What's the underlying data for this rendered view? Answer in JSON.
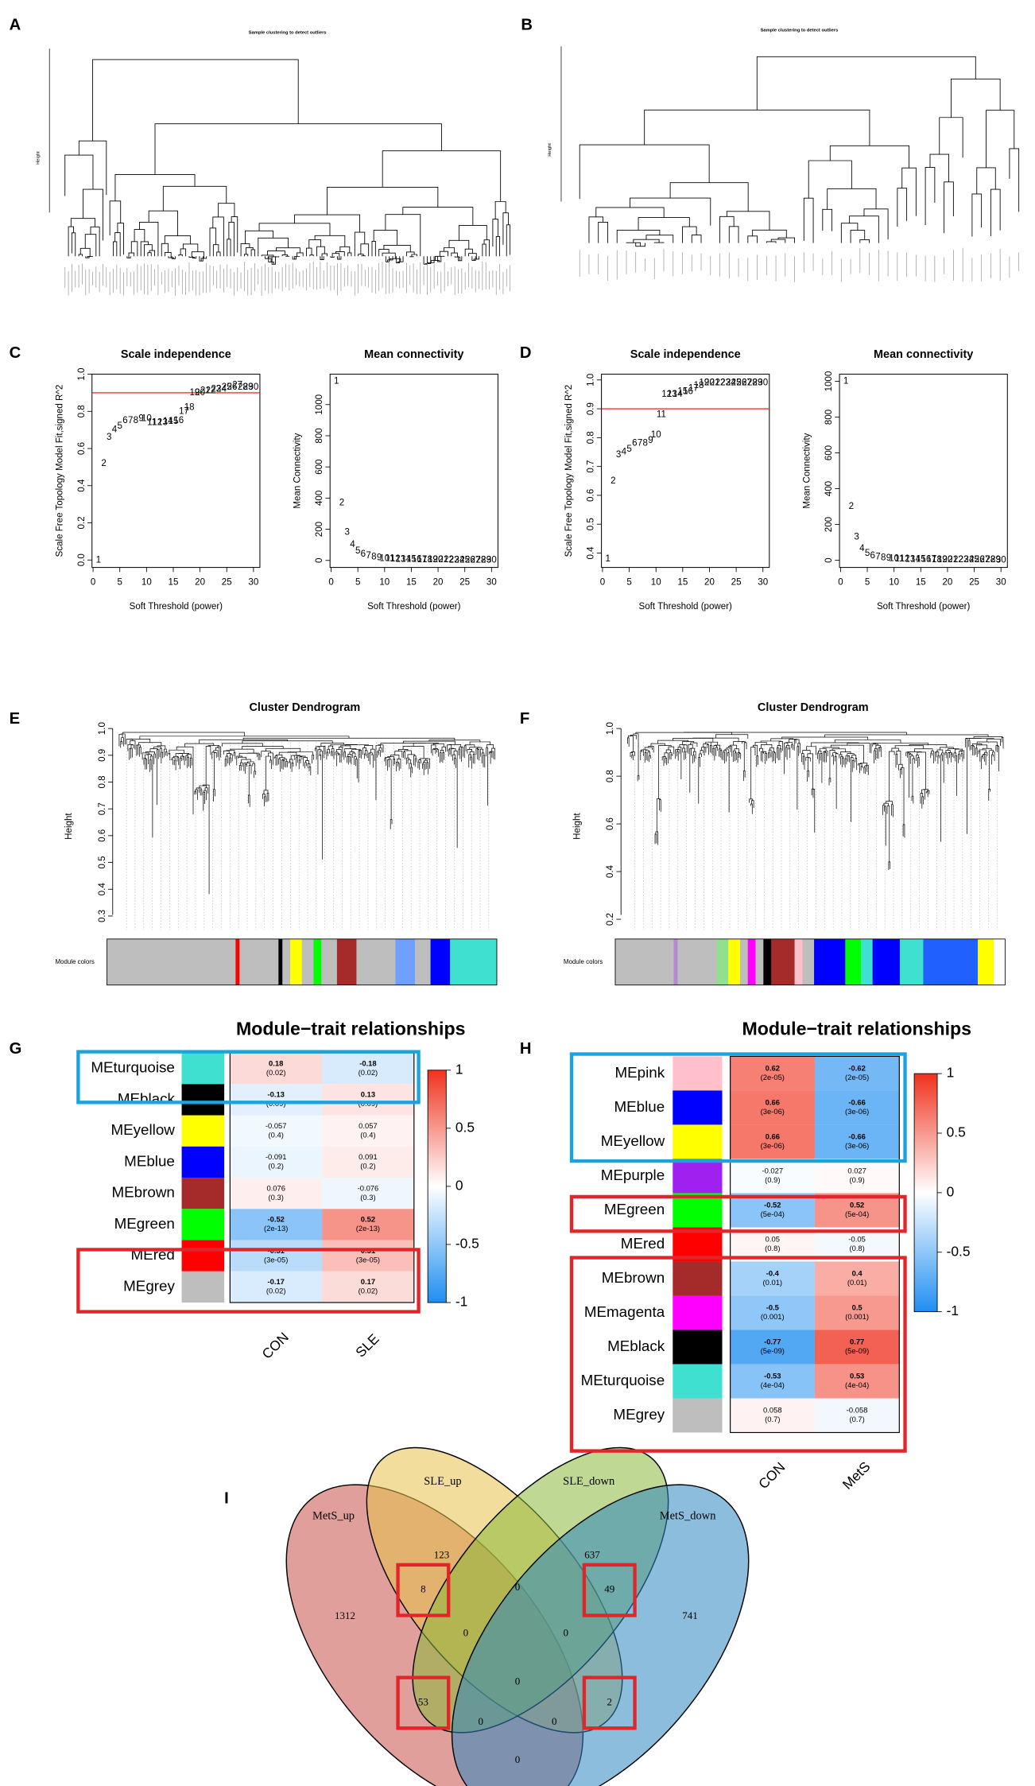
{
  "chart_data": [
    {
      "type": "dendrogram",
      "panel": "A",
      "title": "Sample clustering to detect outliers",
      "ylabel": "Height"
    },
    {
      "type": "dendrogram",
      "panel": "B",
      "title": "Sample clustering to detect outliers",
      "ylabel": "Height"
    },
    {
      "type": "scatter",
      "panel": "C",
      "title": "Scale independence",
      "xlabel": "Soft Threshold (power)",
      "ylabel": "Scale Free Topology Model Fit,signed R^2",
      "color": "#ff0000",
      "x": [
        1,
        2,
        3,
        4,
        5,
        6,
        7,
        8,
        9,
        10,
        11,
        12,
        13,
        14,
        15,
        16,
        17,
        18,
        19,
        20,
        21,
        22,
        23,
        24,
        25,
        26,
        27,
        28,
        29,
        30
      ],
      "values": [
        0.0,
        0.52,
        0.66,
        0.7,
        0.72,
        0.75,
        0.75,
        0.75,
        0.76,
        0.76,
        0.74,
        0.74,
        0.74,
        0.745,
        0.745,
        0.75,
        0.8,
        0.82,
        0.9,
        0.9,
        0.91,
        0.91,
        0.92,
        0.92,
        0.93,
        0.93,
        0.94,
        0.93,
        0.93,
        0.93
      ],
      "threshold": 0.9,
      "xlim": [
        -0.2,
        31.2
      ],
      "ylim": [
        -0.04,
        1.0
      ],
      "xticks": [
        0,
        5,
        10,
        15,
        20,
        25,
        30
      ],
      "yticks": [
        {
          "value": 0,
          "label": "0.0"
        },
        0.2,
        0.4,
        0.6,
        0.8,
        {
          "value": 1,
          "label": "1.0"
        }
      ]
    },
    {
      "type": "scatter",
      "title": "Mean connectivity",
      "xlabel": "Soft Threshold (power)",
      "ylabel": "Mean Connectivity",
      "color": "#ff0000",
      "x": [
        1,
        2,
        3,
        4,
        5,
        6,
        7,
        8,
        9,
        10,
        11,
        12,
        13,
        14,
        15,
        16,
        17,
        18,
        19,
        20,
        21,
        22,
        23,
        24,
        25,
        26,
        27,
        28,
        29,
        30
      ],
      "values": [
        1150,
        370,
        180,
        100,
        60,
        40,
        30,
        22,
        17,
        13,
        11,
        9,
        8,
        7,
        6,
        5.5,
        5,
        4.5,
        4,
        3.6,
        3.3,
        3,
        2.8,
        2.6,
        2.4,
        2.2,
        2,
        1.9,
        1.8,
        1.7
      ],
      "xlim": [
        -0.2,
        31.2
      ],
      "ylim": [
        -45,
        1195
      ],
      "xticks": [
        0,
        5,
        10,
        15,
        20,
        25,
        30
      ],
      "yticks": [
        0,
        200,
        400,
        600,
        800,
        1000
      ]
    },
    {
      "type": "scatter",
      "panel": "D",
      "title": "Scale independence",
      "xlabel": "Soft Threshold (power)",
      "ylabel": "Scale Free Topology Model Fit,signed R^2",
      "color": "#ff0000",
      "x": [
        1,
        2,
        3,
        4,
        5,
        6,
        7,
        8,
        9,
        10,
        11,
        12,
        13,
        14,
        15,
        16,
        17,
        18,
        19,
        20,
        21,
        22,
        23,
        24,
        25,
        26,
        27,
        28,
        29,
        30
      ],
      "values": [
        0.38,
        0.65,
        0.74,
        0.75,
        0.76,
        0.78,
        0.78,
        0.78,
        0.79,
        0.81,
        0.88,
        0.95,
        0.95,
        0.95,
        0.96,
        0.96,
        0.97,
        0.98,
        0.99,
        0.99,
        0.99,
        0.99,
        0.99,
        0.99,
        0.99,
        0.99,
        0.99,
        0.99,
        0.99,
        0.99
      ],
      "threshold": 0.9,
      "xlim": [
        -0.2,
        31.2
      ],
      "ylim": [
        0.35,
        1.02
      ],
      "xticks": [
        0,
        5,
        10,
        15,
        20,
        25,
        30
      ],
      "yticks": [
        0.4,
        0.5,
        0.6,
        0.7,
        0.8,
        0.9,
        {
          "value": 1,
          "label": "1.0"
        }
      ]
    },
    {
      "type": "scatter",
      "title": "Mean connectivity",
      "xlabel": "Soft Threshold (power)",
      "ylabel": "Mean Connectivity",
      "color": "#ff0000",
      "x": [
        1,
        2,
        3,
        4,
        5,
        6,
        7,
        8,
        9,
        10,
        11,
        12,
        13,
        14,
        15,
        16,
        17,
        18,
        19,
        20,
        21,
        22,
        23,
        24,
        25,
        26,
        27,
        28,
        29,
        30
      ],
      "values": [
        1000,
        300,
        130,
        65,
        38,
        25,
        18,
        14,
        11,
        9,
        8,
        7,
        6,
        5.5,
        5,
        4.5,
        4,
        3.7,
        3.4,
        3.1,
        2.9,
        2.7,
        2.5,
        2.3,
        2.2,
        2.1,
        2,
        1.9,
        1.8,
        1.7
      ],
      "xlim": [
        -0.2,
        31.2
      ],
      "ylim": [
        -40,
        1040
      ],
      "xticks": [
        0,
        5,
        10,
        15,
        20,
        25,
        30
      ],
      "yticks": [
        0,
        200,
        400,
        600,
        800,
        1000
      ]
    },
    {
      "type": "cluster",
      "panel": "E",
      "title": "Cluster Dendrogram",
      "ylabel": "Height",
      "colors_label": "Module colors",
      "ylim": [
        0.27,
        1.0
      ],
      "yticks": [
        0.3,
        0.4,
        0.5,
        0.6,
        0.7,
        0.8,
        0.9,
        {
          "value": 1,
          "label": "1.0"
        }
      ]
    },
    {
      "type": "cluster",
      "panel": "F",
      "title": "Cluster Dendrogram",
      "ylabel": "Height",
      "colors_label": "Module colors",
      "ylim": [
        0.18,
        1.0
      ],
      "yticks": [
        0.2,
        0.4,
        0.6,
        0.8,
        {
          "value": 1,
          "label": "1.0"
        }
      ]
    },
    {
      "type": "heatmap",
      "panel": "G",
      "title": "Module−trait relationships",
      "categories": [
        "MEturquoise",
        "MEblack",
        "MEyellow",
        "MEblue",
        "MEbrown",
        "MEgreen",
        "MEred",
        "MEgrey"
      ],
      "row_colors": [
        "#40e0d0",
        "#000000",
        "#ffff00",
        "#0000ff",
        "#a52a2a",
        "#00ff00",
        "#ff0000",
        "#bebebe"
      ],
      "series": [
        {
          "name": "CON",
          "values": [
            0.18,
            -0.13,
            -0.057,
            -0.091,
            0.076,
            -0.52,
            -0.31,
            -0.17
          ],
          "pvalues": [
            "(0.02)",
            "(0.09)",
            "(0.4)",
            "(0.2)",
            "(0.3)",
            "(2e-13)",
            "(3e-05)",
            "(0.02)"
          ]
        },
        {
          "name": "SLE",
          "values": [
            -0.18,
            0.13,
            0.057,
            0.091,
            -0.076,
            0.52,
            0.31,
            0.17
          ],
          "pvalues": [
            "(0.02)",
            "(0.09)",
            "(0.4)",
            "(0.2)",
            "(0.3)",
            "(2e-13)",
            "(3e-05)",
            "(0.02)"
          ]
        }
      ],
      "colorscale": [
        "#1f8ef1",
        "#ffffff",
        "#f0321e"
      ],
      "zlim": [
        -1,
        1
      ],
      "zticks": [
        -1,
        -0.5,
        0,
        0.5,
        1
      ]
    },
    {
      "type": "heatmap",
      "panel": "H",
      "title": "Module−trait relationships",
      "categories": [
        "MEpink",
        "MEblue",
        "MEyellow",
        "MEpurple",
        "MEgreen",
        "MEred",
        "MEbrown",
        "MEmagenta",
        "MEblack",
        "MEturquoise",
        "MEgrey"
      ],
      "row_colors": [
        "#ffc0cb",
        "#0000ff",
        "#ffff00",
        "#a020f0",
        "#00ff00",
        "#ff0000",
        "#a52a2a",
        "#ff00ff",
        "#000000",
        "#40e0d0",
        "#bebebe"
      ],
      "series": [
        {
          "name": "CON",
          "values": [
            0.62,
            0.66,
            0.66,
            -0.027,
            -0.52,
            0.05,
            -0.4,
            -0.5,
            -0.77,
            -0.53,
            0.058
          ],
          "pvalues": [
            "(2e-05)",
            "(3e-06)",
            "(3e-06)",
            "(0.9)",
            "(5e-04)",
            "(0.8)",
            "(0.01)",
            "(0.001)",
            "(5e-09)",
            "(4e-04)",
            "(0.7)"
          ]
        },
        {
          "name": "MetS",
          "values": [
            -0.62,
            -0.66,
            -0.66,
            0.027,
            0.52,
            -0.05,
            0.4,
            0.5,
            0.77,
            0.53,
            -0.058
          ],
          "pvalues": [
            "(2e-05)",
            "(3e-06)",
            "(3e-06)",
            "(0.9)",
            "(5e-04)",
            "(0.8)",
            "(0.01)",
            "(0.001)",
            "(5e-09)",
            "(4e-04)",
            "(0.7)"
          ]
        }
      ],
      "colorscale": [
        "#1f8ef1",
        "#ffffff",
        "#f0321e"
      ],
      "zlim": [
        -1,
        1
      ],
      "zticks": [
        -1,
        -0.5,
        0,
        0.5,
        1
      ]
    },
    {
      "type": "venn",
      "panel": "I",
      "sets": [
        {
          "name": "MetS_up",
          "color": "#c9504a"
        },
        {
          "name": "SLE_up",
          "color": "#e8c14a"
        },
        {
          "name": "SLE_down",
          "color": "#8ab83a"
        },
        {
          "name": "MetS_down",
          "color": "#2d87c0"
        }
      ],
      "values": [
        123,
        637,
        1312,
        8,
        0,
        49,
        741,
        0,
        0,
        0,
        53,
        2,
        0,
        0,
        0
      ]
    }
  ]
}
